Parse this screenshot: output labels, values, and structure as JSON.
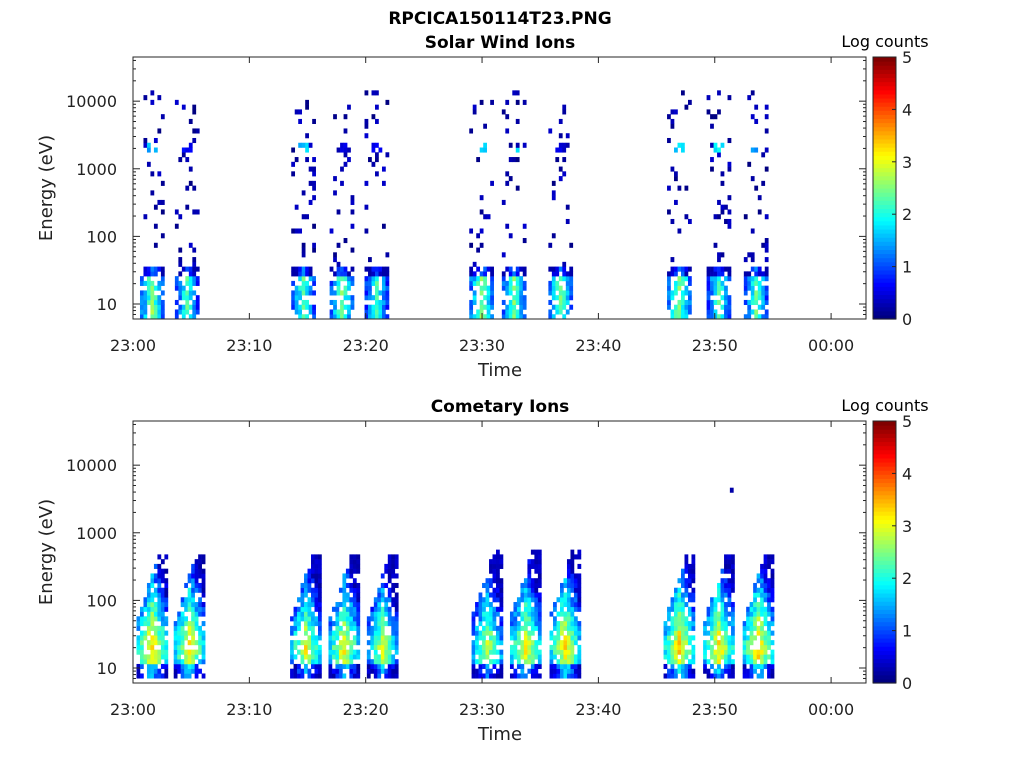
{
  "figure_title": "RPCICA150114T23.PNG",
  "chart_data": [
    {
      "type": "heatmap",
      "title": "Solar Wind Ions",
      "xlabel": "Time",
      "ylabel": "Energy (eV)",
      "x_ticks": [
        "23:00",
        "23:10",
        "23:20",
        "23:30",
        "23:40",
        "23:50",
        "00:00"
      ],
      "x_range_minutes": [
        0,
        63
      ],
      "y_ticks": [
        "10",
        "100",
        "1000",
        "10000"
      ],
      "y_values": [
        10,
        100,
        1000,
        10000
      ],
      "ylim": [
        6,
        45000
      ],
      "y_scale": "log",
      "colorbar": {
        "title": "Log counts",
        "min": 0,
        "max": 5,
        "ticks": [
          "0",
          "1",
          "2",
          "3",
          "4",
          "5"
        ],
        "colormap": "jet"
      },
      "bursts": [
        {
          "center_min": 1.5,
          "low_level": 2.5,
          "high_level": 0.4,
          "upper_band_level": 1.5
        },
        {
          "center_min": 4.5,
          "low_level": 2.2,
          "high_level": 0.4,
          "upper_band_level": 0.5
        },
        {
          "center_min": 14.5,
          "low_level": 2.3,
          "high_level": 0.4,
          "upper_band_level": 1.6
        },
        {
          "center_min": 17.8,
          "low_level": 2.4,
          "high_level": 0.4,
          "upper_band_level": 0.4
        },
        {
          "center_min": 20.8,
          "low_level": 2.2,
          "high_level": 0.4,
          "upper_band_level": 0.5
        },
        {
          "center_min": 29.8,
          "low_level": 2.5,
          "high_level": 0.4,
          "upper_band_level": 1.7
        },
        {
          "center_min": 32.6,
          "low_level": 2.4,
          "high_level": 0.4,
          "upper_band_level": 1.8
        },
        {
          "center_min": 36.6,
          "low_level": 2.4,
          "high_level": 0.4,
          "upper_band_level": 0.4
        },
        {
          "center_min": 46.8,
          "low_level": 2.5,
          "high_level": 0.4,
          "upper_band_level": 1.7
        },
        {
          "center_min": 50.2,
          "low_level": 2.2,
          "high_level": 0.4,
          "upper_band_level": 1.8
        },
        {
          "center_min": 53.4,
          "low_level": 2.3,
          "high_level": 0.4,
          "upper_band_level": 1.4
        }
      ]
    },
    {
      "type": "heatmap",
      "title": "Cometary Ions",
      "xlabel": "Time",
      "ylabel": "Energy (eV)",
      "x_ticks": [
        "23:00",
        "23:10",
        "23:20",
        "23:30",
        "23:40",
        "23:50",
        "00:00"
      ],
      "x_range_minutes": [
        0,
        63
      ],
      "y_ticks": [
        "10",
        "100",
        "1000",
        "10000"
      ],
      "y_values": [
        10,
        100,
        1000,
        10000
      ],
      "ylim": [
        6,
        45000
      ],
      "y_scale": "log",
      "colorbar": {
        "title": "Log counts",
        "min": 0,
        "max": 5,
        "ticks": [
          "0",
          "1",
          "2",
          "3",
          "4",
          "5"
        ],
        "colormap": "jet"
      },
      "bursts": [
        {
          "center_min": 1.5,
          "peak_level": 3.4,
          "peak_energy_ev": 20,
          "top_energy_ev": 500
        },
        {
          "center_min": 4.7,
          "peak_level": 3.3,
          "peak_energy_ev": 20,
          "top_energy_ev": 500
        },
        {
          "center_min": 14.7,
          "peak_level": 3.1,
          "peak_energy_ev": 20,
          "top_energy_ev": 500
        },
        {
          "center_min": 18.0,
          "peak_level": 3.2,
          "peak_energy_ev": 20,
          "top_energy_ev": 500
        },
        {
          "center_min": 21.3,
          "peak_level": 3.0,
          "peak_energy_ev": 20,
          "top_energy_ev": 500
        },
        {
          "center_min": 30.3,
          "peak_level": 3.0,
          "peak_energy_ev": 20,
          "top_energy_ev": 550
        },
        {
          "center_min": 33.6,
          "peak_level": 3.2,
          "peak_energy_ev": 20,
          "top_energy_ev": 550
        },
        {
          "center_min": 37.0,
          "peak_level": 3.3,
          "peak_energy_ev": 20,
          "top_energy_ev": 550
        },
        {
          "center_min": 46.8,
          "peak_level": 3.4,
          "peak_energy_ev": 20,
          "top_energy_ev": 450
        },
        {
          "center_min": 50.2,
          "peak_level": 3.3,
          "peak_energy_ev": 20,
          "top_energy_ev": 450
        },
        {
          "center_min": 53.6,
          "peak_level": 3.4,
          "peak_energy_ev": 20,
          "top_energy_ev": 500
        }
      ],
      "isolated_points": [
        {
          "minute": 51.3,
          "energy_ev": 4200,
          "level": 0.2
        }
      ]
    }
  ]
}
